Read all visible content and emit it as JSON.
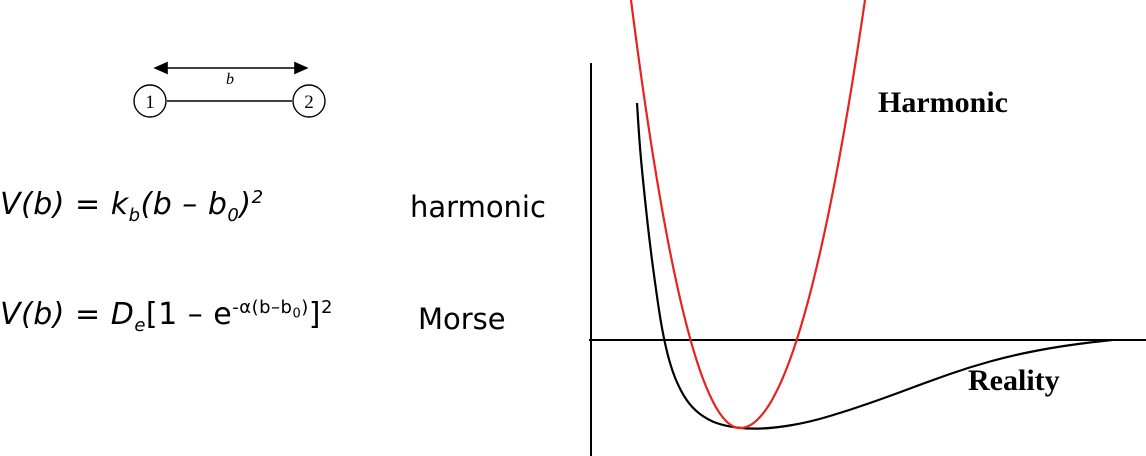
{
  "bond": {
    "length_label": "b",
    "atom1": "1",
    "atom2": "2"
  },
  "equations": {
    "harmonic": {
      "lhs": "V(b)",
      "eq": " = ",
      "k": "k",
      "k_sub": "b",
      "paren_open": "(b – b",
      "b0_sub": "0",
      "paren_close": ")",
      "power": "2",
      "name": "harmonic"
    },
    "morse": {
      "lhs": "V(b)",
      "eq": " = ",
      "D": "D",
      "D_sub": "e",
      "bracket_open": "[1 – e",
      "exp": "-α(b–b",
      "exp_sub": "0",
      "exp_close": ")",
      "bracket_close": "]",
      "power": "2",
      "name": "Morse"
    }
  },
  "plot": {
    "harmonic_label": "Harmonic",
    "reality_label": "Reality",
    "colors": {
      "harmonic": "#e8231f",
      "reality": "#000000",
      "axes": "#000000"
    }
  }
}
